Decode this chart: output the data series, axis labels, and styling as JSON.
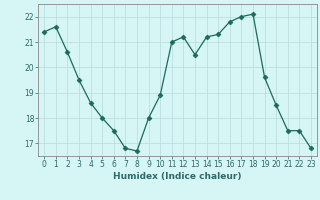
{
  "x": [
    0,
    1,
    2,
    3,
    4,
    5,
    6,
    7,
    8,
    9,
    10,
    11,
    12,
    13,
    14,
    15,
    16,
    17,
    18,
    19,
    20,
    21,
    22,
    23
  ],
  "y": [
    21.4,
    21.6,
    20.6,
    19.5,
    18.6,
    18.0,
    17.5,
    16.8,
    16.7,
    18.0,
    18.9,
    21.0,
    21.2,
    20.5,
    21.2,
    21.3,
    21.8,
    22.0,
    22.1,
    19.6,
    18.5,
    17.5,
    17.5,
    16.8
  ],
  "line_color": "#1a6b5a",
  "marker": "D",
  "marker_size": 2.5,
  "bg_color": "#d6f5f5",
  "grid_color": "#b8dada",
  "xlabel": "Humidex (Indice chaleur)",
  "xlim": [
    -0.5,
    23.5
  ],
  "ylim": [
    16.5,
    22.5
  ],
  "yticks": [
    17,
    18,
    19,
    20,
    21,
    22
  ],
  "xticks": [
    0,
    1,
    2,
    3,
    4,
    5,
    6,
    7,
    8,
    9,
    10,
    11,
    12,
    13,
    14,
    15,
    16,
    17,
    18,
    19,
    20,
    21,
    22,
    23
  ],
  "tick_color": "#2d6b6b",
  "axis_color": "#888888",
  "label_fontsize": 6.5,
  "tick_fontsize": 5.5
}
